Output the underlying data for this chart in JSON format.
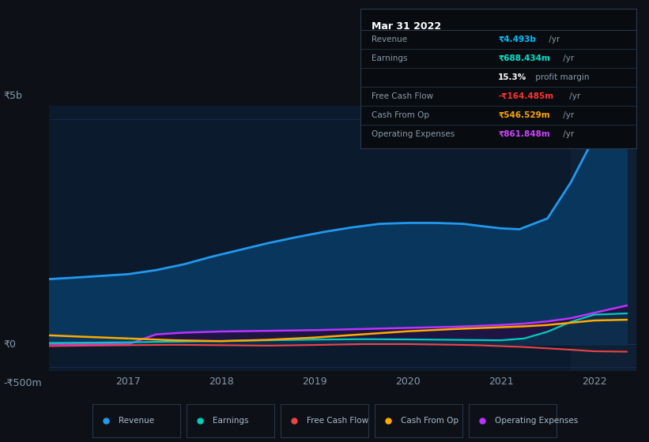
{
  "bg_color": "#0d1117",
  "plot_bg_color": "#0c1a2e",
  "grid_color": "#1e3050",
  "title_date": "Mar 31 2022",
  "table": {
    "Revenue": {
      "label": "Revenue",
      "value": "₹4.493b",
      "suffix": " /yr",
      "color": "#00bfff"
    },
    "Earnings": {
      "label": "Earnings",
      "value": "₹688.434m",
      "suffix": " /yr",
      "color": "#00e5cc"
    },
    "profit_margin": {
      "label": "",
      "value": "15.3%",
      "suffix": " profit margin",
      "color": "#ffffff"
    },
    "Free Cash Flow": {
      "label": "Free Cash Flow",
      "value": "-₹164.485m",
      "suffix": " /yr",
      "color": "#ff3333"
    },
    "Cash From Op": {
      "label": "Cash From Op",
      "value": "₹546.529m",
      "suffix": " /yr",
      "color": "#ffa500"
    },
    "Operating Expenses": {
      "label": "Operating Expenses",
      "value": "₹861.848m",
      "suffix": " /yr",
      "color": "#cc44ff"
    }
  },
  "table_order": [
    "Revenue",
    "Earnings",
    "profit_margin",
    "Free Cash Flow",
    "Cash From Op",
    "Operating Expenses"
  ],
  "ylim": [
    -600,
    5300
  ],
  "ytick_positions": [
    -500,
    0,
    5000
  ],
  "ytick_labels": [
    "-₹500m",
    "₹0",
    "₹5b"
  ],
  "highlight_x_start": 2021.75,
  "xlim": [
    2016.15,
    2022.45
  ],
  "xticks": [
    2017,
    2018,
    2019,
    2020,
    2021,
    2022
  ],
  "series": {
    "Revenue": {
      "color": "#2299ee",
      "fill_color": "#0a2a4a",
      "x": [
        2016.15,
        2016.4,
        2016.7,
        2017.0,
        2017.3,
        2017.6,
        2017.9,
        2018.2,
        2018.5,
        2018.8,
        2019.1,
        2019.4,
        2019.7,
        2020.0,
        2020.3,
        2020.6,
        2020.75,
        2021.0,
        2021.2,
        2021.5,
        2021.75,
        2022.0,
        2022.2,
        2022.35
      ],
      "y": [
        1450,
        1480,
        1520,
        1560,
        1650,
        1780,
        1950,
        2100,
        2250,
        2380,
        2500,
        2600,
        2680,
        2700,
        2700,
        2680,
        2640,
        2580,
        2560,
        2800,
        3600,
        4600,
        4850,
        4493
      ]
    },
    "Earnings": {
      "color": "#00ccbb",
      "x": [
        2016.15,
        2016.5,
        2017.0,
        2017.5,
        2018.0,
        2018.5,
        2019.0,
        2019.5,
        2020.0,
        2020.5,
        2020.75,
        2021.0,
        2021.25,
        2021.5,
        2021.75,
        2022.0,
        2022.35
      ],
      "y": [
        30,
        35,
        45,
        60,
        75,
        90,
        105,
        115,
        110,
        100,
        95,
        90,
        130,
        280,
        500,
        660,
        688
      ]
    },
    "Free Cash Flow": {
      "color": "#ee4444",
      "x": [
        2016.15,
        2016.5,
        2017.0,
        2017.5,
        2018.0,
        2018.5,
        2019.0,
        2019.5,
        2020.0,
        2020.5,
        2020.75,
        2021.0,
        2021.25,
        2021.5,
        2021.75,
        2022.0,
        2022.35
      ],
      "y": [
        -40,
        -30,
        -20,
        -10,
        -20,
        -30,
        -15,
        5,
        5,
        -10,
        -20,
        -40,
        -60,
        -90,
        -120,
        -155,
        -164
      ]
    },
    "Cash From Op": {
      "color": "#ffaa00",
      "x": [
        2016.15,
        2016.5,
        2017.0,
        2017.5,
        2018.0,
        2018.5,
        2019.0,
        2019.5,
        2020.0,
        2020.5,
        2020.75,
        2021.0,
        2021.25,
        2021.5,
        2021.75,
        2022.0,
        2022.35
      ],
      "y": [
        200,
        170,
        130,
        90,
        70,
        100,
        150,
        220,
        290,
        340,
        360,
        380,
        400,
        430,
        480,
        530,
        547
      ]
    },
    "Operating Expenses": {
      "color": "#bb33ff",
      "fill_color": "#2a1050",
      "x": [
        2016.15,
        2016.5,
        2017.0,
        2017.3,
        2017.6,
        2018.0,
        2018.5,
        2019.0,
        2019.5,
        2020.0,
        2020.5,
        2020.75,
        2021.0,
        2021.25,
        2021.5,
        2021.75,
        2022.0,
        2022.35
      ],
      "y": [
        0,
        0,
        0,
        220,
        260,
        285,
        300,
        315,
        340,
        365,
        390,
        410,
        430,
        460,
        510,
        580,
        700,
        862
      ]
    }
  },
  "legend": [
    {
      "label": "Revenue",
      "color": "#2299ee"
    },
    {
      "label": "Earnings",
      "color": "#00ccbb"
    },
    {
      "label": "Free Cash Flow",
      "color": "#ee4444"
    },
    {
      "label": "Cash From Op",
      "color": "#ffaa00"
    },
    {
      "label": "Operating Expenses",
      "color": "#bb33ff"
    }
  ]
}
